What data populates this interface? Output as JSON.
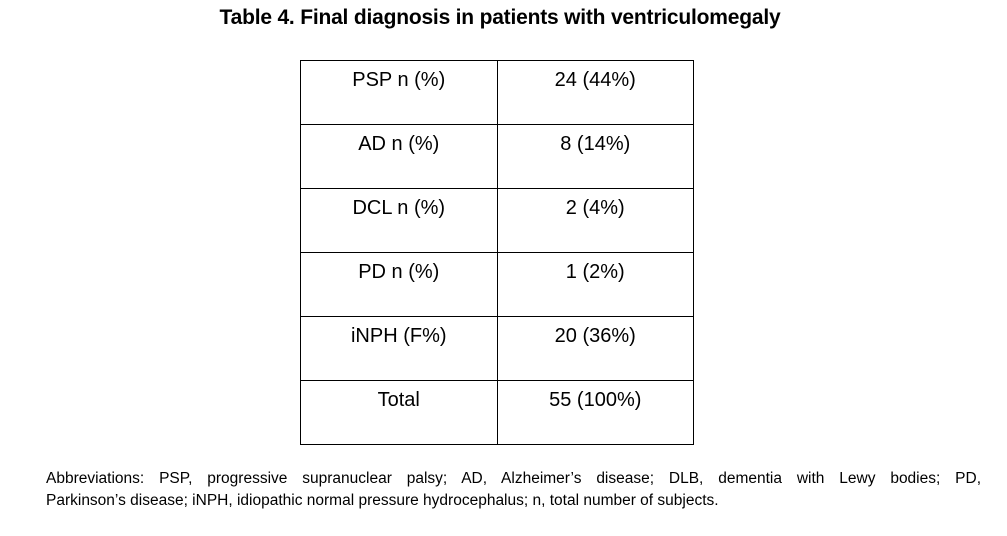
{
  "page": {
    "background_color": "#ffffff",
    "text_color": "#000000",
    "table_border_color": "#000000"
  },
  "title": "Table 4. Final diagnosis in patients with ventriculomegaly",
  "table": {
    "rows": [
      {
        "label": "PSP n (%)",
        "value": "24 (44%)"
      },
      {
        "label": "AD n (%)",
        "value": "8 (14%)"
      },
      {
        "label": "DCL n (%)",
        "value": "2 (4%)"
      },
      {
        "label": "PD n (%)",
        "value": "1 (2%)"
      },
      {
        "label": "iNPH (F%)",
        "value": "20 (36%)"
      },
      {
        "label": "Total",
        "value": "55 (100%)"
      }
    ]
  },
  "footnote": {
    "line1": "Abbreviations: PSP, progressive supranuclear palsy; AD, Alzheimer’s disease; DLB, dementia with Lewy bodies; PD,",
    "line2": "Parkinson’s disease; iNPH, idiopathic normal pressure hydrocephalus; n, total number of subjects."
  }
}
